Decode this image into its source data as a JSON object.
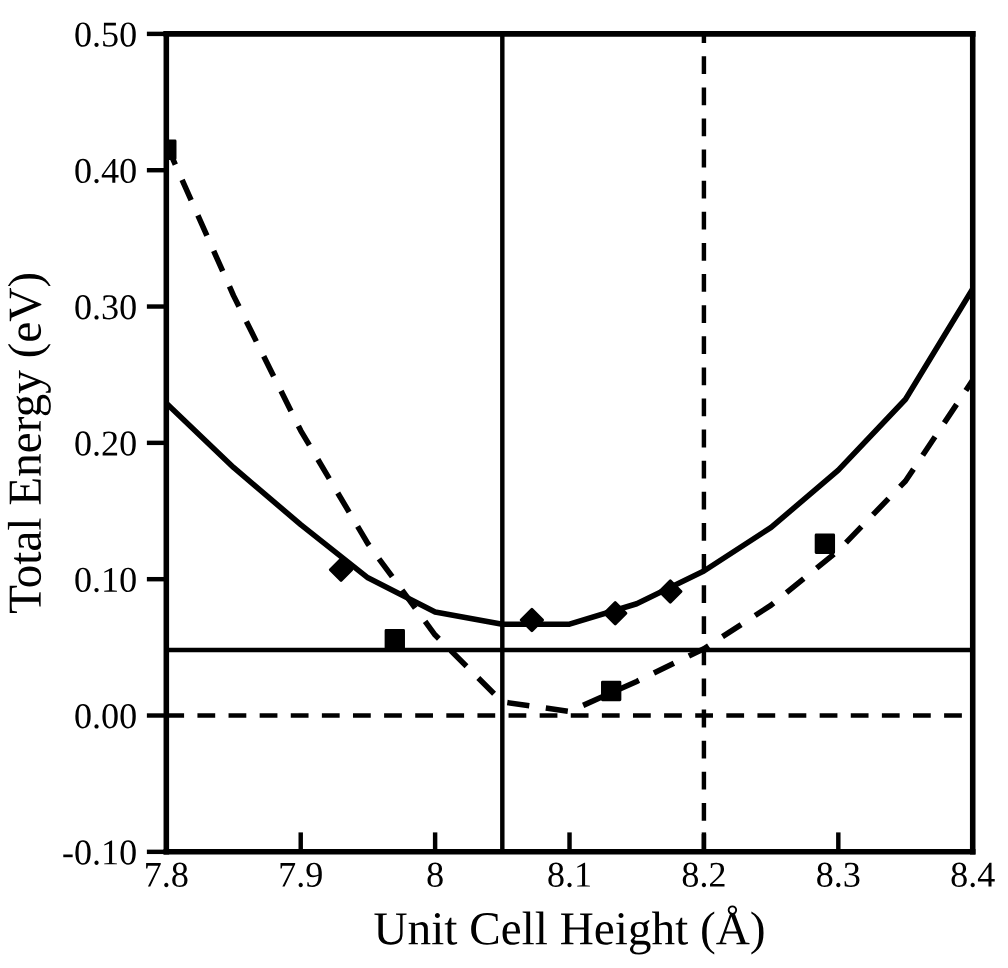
{
  "chart_data": {
    "type": "line",
    "xlabel": "Unit Cell Height (Å)",
    "ylabel": "Total Energy (eV)",
    "xlim": [
      7.8,
      8.4
    ],
    "ylim": [
      -0.1,
      0.5
    ],
    "xticks": [
      7.8,
      7.9,
      8,
      8.1,
      8.2,
      8.3,
      8.4
    ],
    "yticks": [
      {
        "value": -0.1,
        "label": "-0.10"
      },
      {
        "value": 0,
        "label": "0.00"
      },
      {
        "value": 0.1,
        "label": "0.10"
      },
      {
        "value": 0.2,
        "label": "0.20"
      },
      {
        "value": 0.3,
        "label": "0.30"
      },
      {
        "value": 0.4,
        "label": "0.40"
      },
      {
        "value": 0.5,
        "label": "0.50"
      }
    ],
    "grid": false,
    "series": [
      {
        "color": "#000000",
        "line_style": "solid",
        "marker": "none",
        "x": [
          7.8,
          7.85,
          7.9,
          7.95,
          8.0,
          8.05,
          8.1,
          8.15,
          8.2,
          8.25,
          8.3,
          8.35,
          8.4
        ],
        "values": [
          0.229,
          0.182,
          0.14,
          0.101,
          0.076,
          0.067,
          0.067,
          0.082,
          0.106,
          0.138,
          0.18,
          0.232,
          0.313
        ]
      },
      {
        "color": "#000000",
        "line_style": "dashed",
        "marker": "none",
        "x": [
          7.8,
          7.85,
          7.9,
          7.95,
          8.0,
          8.05,
          8.1,
          8.15,
          8.2,
          8.25,
          8.3,
          8.35,
          8.4
        ],
        "values": [
          0.419,
          0.308,
          0.209,
          0.126,
          0.059,
          0.01,
          0.003,
          0.025,
          0.049,
          0.081,
          0.121,
          0.172,
          0.246
        ]
      },
      {
        "type": "scatter",
        "color": "#000000",
        "marker": "diamond",
        "x": [
          7.93,
          8.072,
          8.134,
          8.175
        ],
        "values": [
          0.107,
          0.07,
          0.075,
          0.091
        ]
      },
      {
        "type": "scatter",
        "color": "#000000",
        "marker": "square",
        "x": [
          7.8,
          7.97,
          8.131,
          8.29
        ],
        "values": [
          0.415,
          0.056,
          0.018,
          0.126
        ]
      }
    ],
    "ref_lines": [
      {
        "axis": "x",
        "value": 8.05,
        "line_style": "solid",
        "color": "#000000"
      },
      {
        "axis": "x",
        "value": 8.2,
        "line_style": "dashed",
        "color": "#000000"
      },
      {
        "axis": "y",
        "value": 0.048,
        "line_style": "solid",
        "color": "#000000"
      },
      {
        "axis": "y",
        "value": 0,
        "line_style": "dashed",
        "color": "#000000"
      }
    ]
  }
}
